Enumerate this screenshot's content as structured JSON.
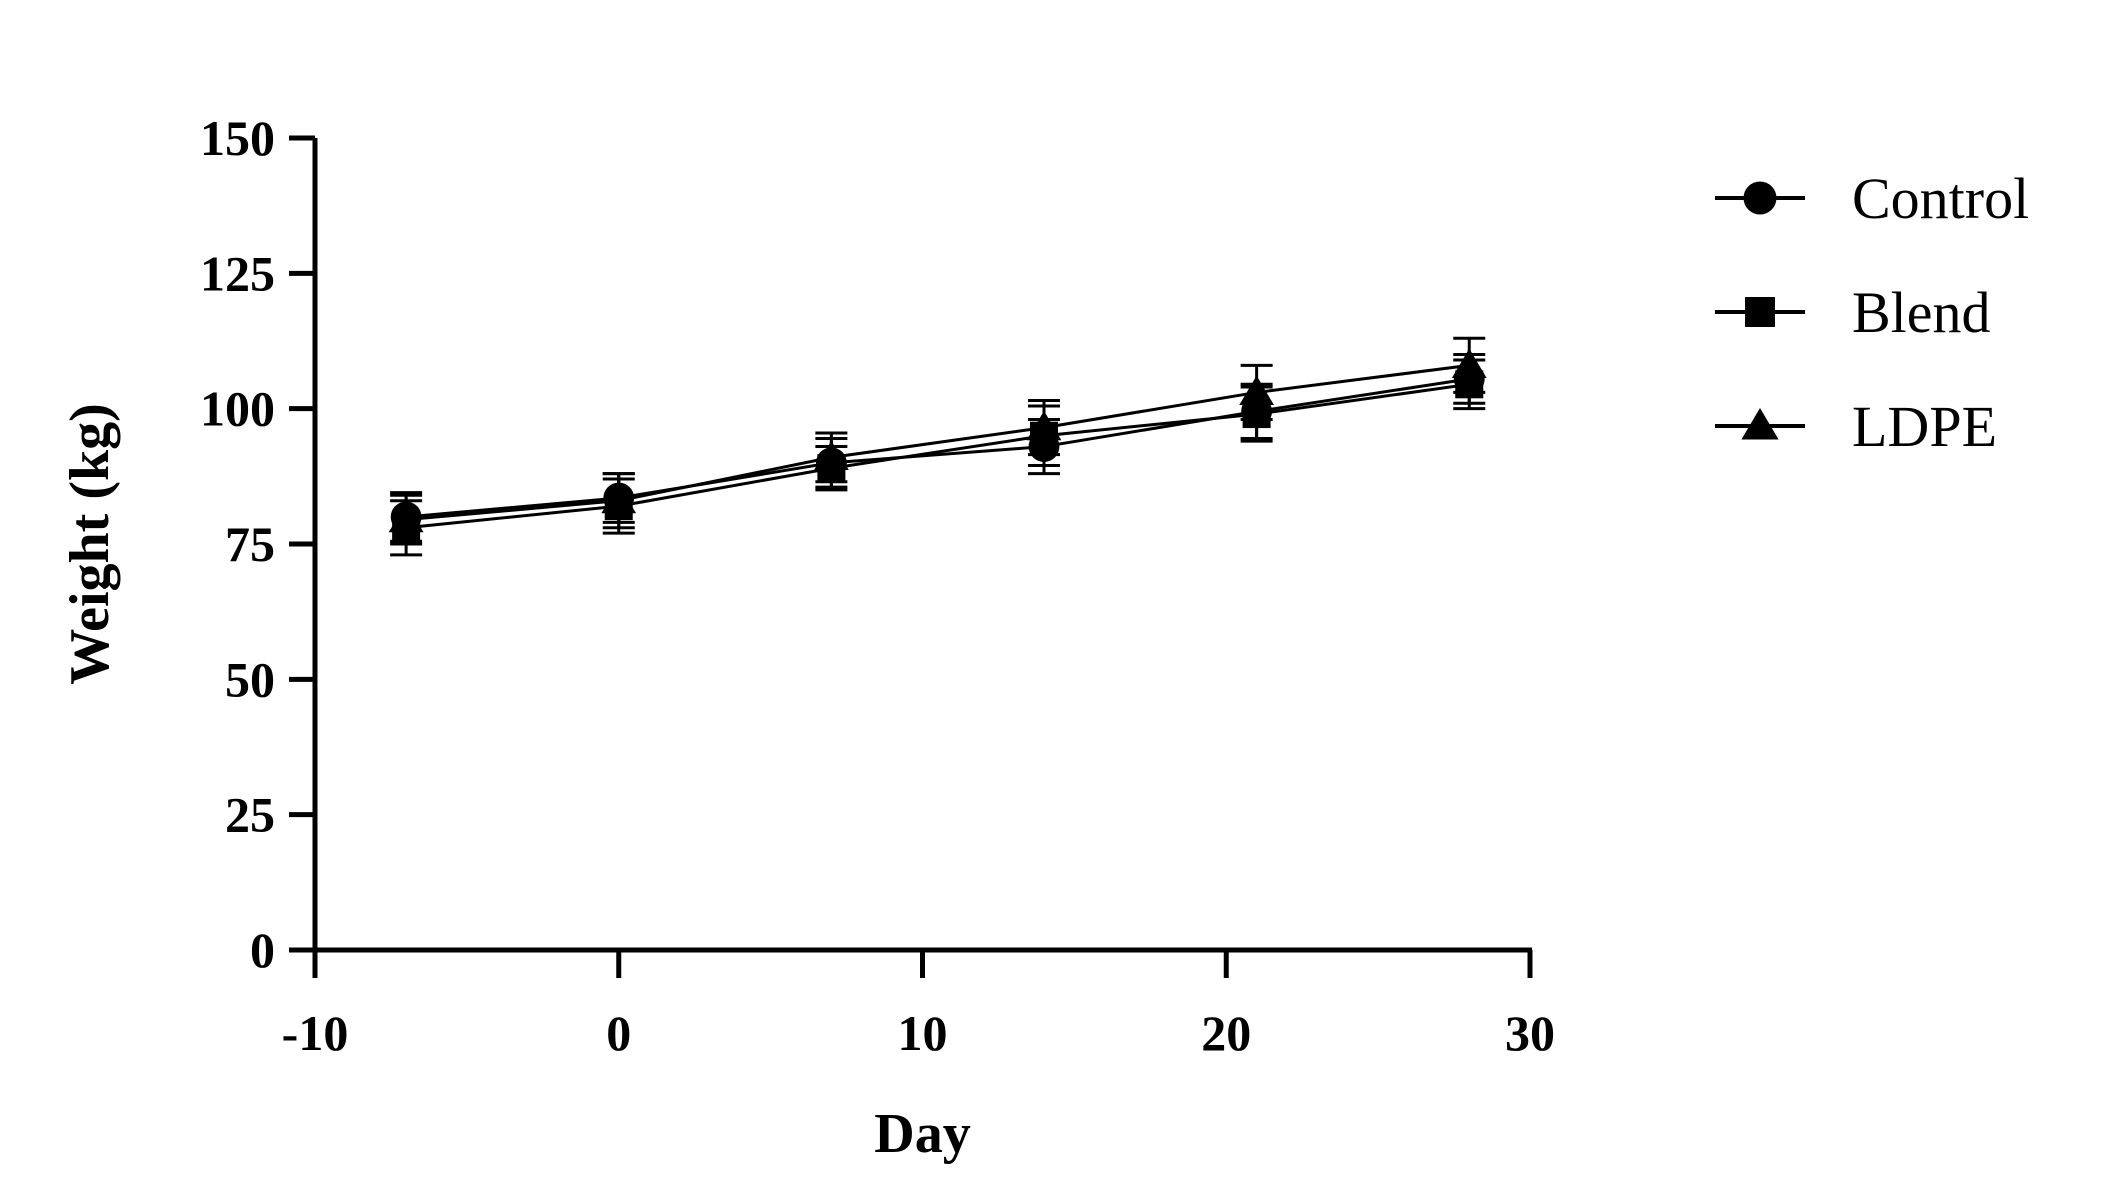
{
  "chart_data": {
    "type": "line",
    "title": "",
    "xlabel": "Day",
    "ylabel": "Weight (kg)",
    "xlim": [
      -10,
      30
    ],
    "ylim": [
      0,
      150
    ],
    "xticks": [
      -10,
      0,
      10,
      20,
      30
    ],
    "yticks": [
      0,
      25,
      50,
      75,
      100,
      125,
      150
    ],
    "grid": false,
    "legend_position": "top-right",
    "x": [
      -7,
      0,
      7,
      14,
      21,
      28
    ],
    "series": [
      {
        "name": "Control",
        "marker": "circle",
        "values": [
          80,
          83.5,
          90,
          93,
          99.5,
          105.5
        ],
        "errors": [
          4.5,
          4.5,
          4.5,
          5,
          5,
          4.5
        ]
      },
      {
        "name": "Blend",
        "marker": "square",
        "values": [
          78,
          82,
          89,
          95,
          99,
          104.5
        ],
        "errors": [
          5,
          5,
          4,
          5.5,
          5,
          4.5
        ]
      },
      {
        "name": "LDPE",
        "marker": "triangle",
        "values": [
          79.5,
          83,
          91,
          96.5,
          103,
          108
        ],
        "errors": [
          4.5,
          5,
          4.5,
          5,
          5,
          5
        ]
      }
    ]
  }
}
